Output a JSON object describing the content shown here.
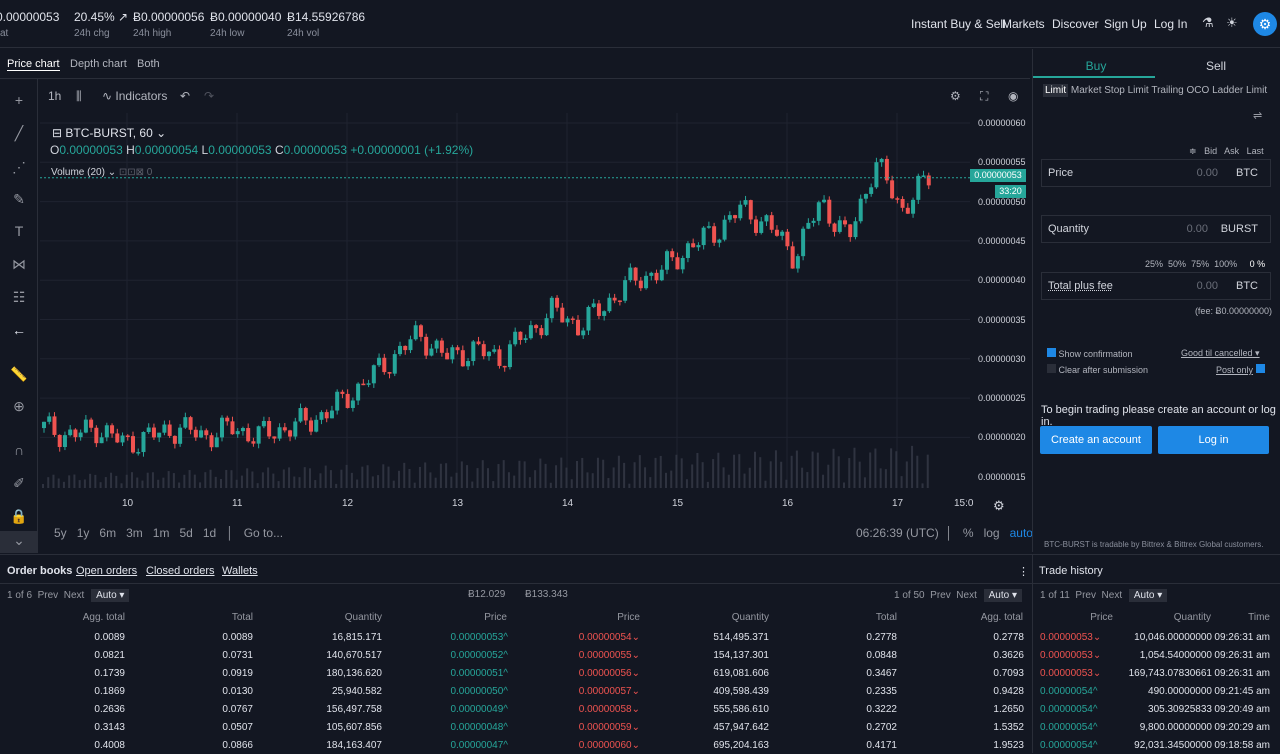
{
  "ticker": {
    "last": "0.00000053",
    "last_label": "at",
    "change": "20.45%",
    "change_label": "24h chg",
    "high": "Ƀ0.00000056",
    "high_label": "24h high",
    "low": "Ƀ0.00000040",
    "low_label": "24h low",
    "vol": "Ƀ14.55926786",
    "vol_label": "24h vol"
  },
  "nav": {
    "instant": "Instant Buy & Sell",
    "markets": "Markets",
    "discover": "Discover",
    "signup": "Sign Up",
    "login": "Log In"
  },
  "chart_tabs": [
    "Price chart",
    "Depth chart",
    "Both"
  ],
  "toolbar": {
    "interval": "1h",
    "indicators": "Indicators"
  },
  "legend": {
    "symbol": "BTC-BURST, 60",
    "o_label": "O",
    "o": "0.00000053",
    "h_label": "H",
    "h": "0.00000054",
    "l_label": "L",
    "l": "0.00000053",
    "c_label": "C",
    "c": "0.00000053",
    "chg": "+0.00000001 (+1.92%)",
    "volume": "Volume (20)",
    "volume_val": "0"
  },
  "price_axis": [
    "0.00000060",
    "0.00000055",
    "0.00000050",
    "0.00000045",
    "0.00000040",
    "0.00000035",
    "0.00000030",
    "0.00000025",
    "0.00000020",
    "0.00000015"
  ],
  "current_price": "0.00000053",
  "countdown": "33:20",
  "x_axis": [
    "10",
    "11",
    "12",
    "13",
    "14",
    "15",
    "16",
    "17",
    "15:0"
  ],
  "ranges": [
    "5y",
    "1y",
    "6m",
    "3m",
    "1m",
    "5d",
    "1d"
  ],
  "goto": "Go to...",
  "clock": "06:26:39 (UTC)",
  "scale": {
    "pct": "%",
    "log": "log",
    "auto": "auto"
  },
  "chart_data": {
    "type": "candlestick",
    "x": "hourly candles from 10 to 17",
    "y_range": [
      1.5e-07,
      6e-07
    ],
    "closes": [
      2.1e-07,
      2e-07,
      2.1e-07,
      1.9e-07,
      2e-07,
      2.1e-07,
      2e-07,
      2.1e-07,
      2e-07,
      2.1e-07,
      2.2e-07,
      2.4e-07,
      2.7e-07,
      3e-07,
      3.3e-07,
      3e-07,
      3.1e-07,
      3e-07,
      3.3e-07,
      3.6e-07,
      3.4e-07,
      3.7e-07,
      4e-07,
      4.1e-07,
      4.4e-07,
      4.6e-07,
      4.9e-07,
      4.7e-07,
      4.3e-07,
      5e-07,
      4.5e-07,
      5.5e-07,
      4.9e-07,
      5.3e-07
    ]
  },
  "trade_panel": {
    "buy": "Buy",
    "sell": "Sell",
    "types": [
      "Limit",
      "Market",
      "Stop Limit",
      "Trailing",
      "OCO",
      "Ladder Limit"
    ],
    "bid": "Bid",
    "ask": "Ask",
    "last": "Last",
    "price": {
      "label": "Price",
      "value": "0.00",
      "unit": "BTC"
    },
    "qty": {
      "label": "Quantity",
      "value": "0.00",
      "unit": "BURST"
    },
    "total": {
      "label": "Total plus fee",
      "value": "0.00",
      "unit": "BTC"
    },
    "pcts": [
      "25%",
      "50%",
      "75%",
      "100%"
    ],
    "pct_val": "0 %",
    "fee": "(fee: Ƀ0.00000000)",
    "show_conf": "Show confirmation",
    "clear": "Clear after submission",
    "gtc": "Good til cancelled",
    "post": "Post only",
    "prompt": "To begin trading please create an account or log in.",
    "create": "Create an account",
    "login": "Log in",
    "note": "BTC-BURST is tradable by Bittrex & Bittrex Global customers."
  },
  "orderbook": {
    "tabs": [
      "Order books",
      "Open orders",
      "Closed orders",
      "Wallets"
    ],
    "pager_left": "1 of 6",
    "pager_right": "1 of 50",
    "prev": "Prev",
    "next": "Next",
    "auto": "Auto",
    "bid_total": "Ƀ12.029",
    "ask_total": "Ƀ133.343",
    "bid_headers": [
      "Agg. total",
      "Total",
      "Quantity",
      "Price"
    ],
    "ask_headers": [
      "Price",
      "Quantity",
      "Total",
      "Agg. total"
    ],
    "bids": [
      [
        "0.0089",
        "0.0089",
        "16,815.171",
        "0.00000053"
      ],
      [
        "0.0821",
        "0.0731",
        "140,670.517",
        "0.00000052"
      ],
      [
        "0.1739",
        "0.0919",
        "180,136.620",
        "0.00000051"
      ],
      [
        "0.1869",
        "0.0130",
        "25,940.582",
        "0.00000050"
      ],
      [
        "0.2636",
        "0.0767",
        "156,497.758",
        "0.00000049"
      ],
      [
        "0.3143",
        "0.0507",
        "105,607.856",
        "0.00000048"
      ],
      [
        "0.4008",
        "0.0866",
        "184,163.407",
        "0.00000047"
      ]
    ],
    "asks": [
      [
        "0.00000054",
        "514,495.371",
        "0.2778",
        "0.2778"
      ],
      [
        "0.00000055",
        "154,137.301",
        "0.0848",
        "0.3626"
      ],
      [
        "0.00000056",
        "619,081.606",
        "0.3467",
        "0.7093"
      ],
      [
        "0.00000057",
        "409,598.439",
        "0.2335",
        "0.9428"
      ],
      [
        "0.00000058",
        "555,586.610",
        "0.3222",
        "1.2650"
      ],
      [
        "0.00000059",
        "457,947.642",
        "0.2702",
        "1.5352"
      ],
      [
        "0.00000060",
        "695,204.163",
        "0.4171",
        "1.9523"
      ]
    ]
  },
  "trades": {
    "title": "Trade history",
    "pager": "1 of 11",
    "headers": [
      "Price",
      "Quantity",
      "Time"
    ],
    "rows": [
      [
        "0.00000053",
        "10,046.00000000",
        "09:26:31 am",
        "r"
      ],
      [
        "0.00000053",
        "1,054.54000000",
        "09:26:31 am",
        "r"
      ],
      [
        "0.00000053",
        "169,743.07830661",
        "09:26:31 am",
        "r"
      ],
      [
        "0.00000054",
        "490.00000000",
        "09:21:45 am",
        "g"
      ],
      [
        "0.00000054",
        "305.30925833",
        "09:20:49 am",
        "g"
      ],
      [
        "0.00000054",
        "9,800.00000000",
        "09:20:29 am",
        "g"
      ],
      [
        "0.00000054",
        "92,031.34500000",
        "09:18:58 am",
        "g"
      ]
    ]
  },
  "colors": {
    "up": "#26a69a",
    "down": "#ef5350",
    "accent": "#1e88e5"
  }
}
